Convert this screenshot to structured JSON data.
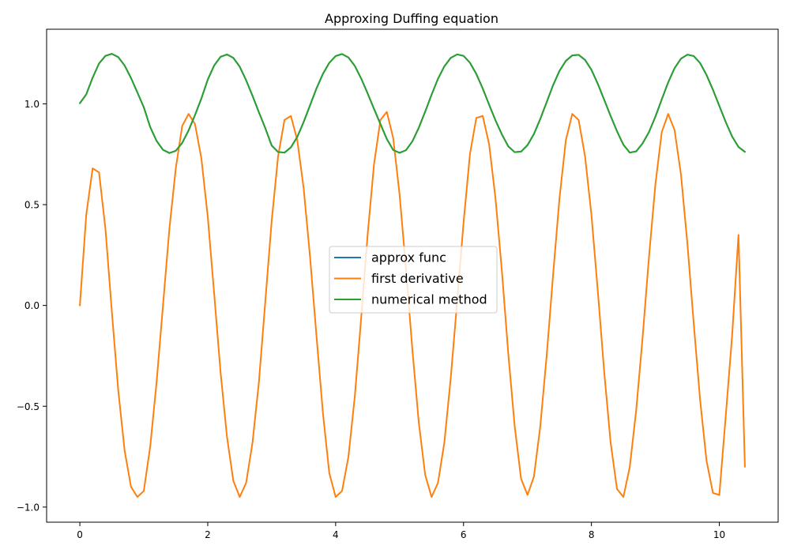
{
  "chart_data": {
    "type": "line",
    "title": "Approxing Duffing equation",
    "xlabel": "",
    "ylabel": "",
    "xlim": [
      -0.52,
      10.92
    ],
    "ylim": [
      -1.075,
      1.37
    ],
    "xticks": [
      0,
      2,
      4,
      6,
      8,
      10
    ],
    "xtick_labels": [
      "0",
      "2",
      "4",
      "6",
      "8",
      "10"
    ],
    "yticks": [
      -1.0,
      -0.5,
      0.0,
      0.5,
      1.0
    ],
    "ytick_labels": [
      "−1.0",
      "−0.5",
      "0.0",
      "0.5",
      "1.0"
    ],
    "grid": false,
    "legend_position": "center",
    "series": [
      {
        "name": "approx func",
        "color": "#1f77b4",
        "x": [
          0,
          0.1,
          0.2,
          0.3,
          0.4,
          0.5,
          0.6,
          0.7,
          0.8,
          0.9,
          1.0,
          1.1,
          1.2,
          1.3,
          1.4,
          1.5,
          1.6,
          1.7,
          1.8,
          1.9,
          2.0,
          2.1,
          2.2,
          2.3,
          2.4,
          2.5,
          2.6,
          2.7,
          2.8,
          2.9,
          3.0,
          3.1,
          3.2,
          3.3,
          3.4,
          3.5,
          3.6,
          3.7,
          3.8,
          3.9,
          4.0,
          4.1,
          4.2,
          4.3,
          4.4,
          4.5,
          4.6,
          4.7,
          4.8,
          4.9,
          5.0,
          5.1,
          5.2,
          5.3,
          5.4,
          5.5,
          5.6,
          5.7,
          5.8,
          5.9,
          6.0,
          6.1,
          6.2,
          6.3,
          6.4,
          6.5,
          6.6,
          6.7,
          6.8,
          6.9,
          7.0,
          7.1,
          7.2,
          7.3,
          7.4,
          7.5,
          7.6,
          7.7,
          7.8,
          7.9,
          8.0,
          8.1,
          8.2,
          8.3,
          8.4,
          8.5,
          8.6,
          8.7,
          8.8,
          8.9,
          9.0,
          9.1,
          9.2,
          9.3,
          9.4,
          9.5,
          9.6,
          9.7,
          9.8,
          9.9,
          10.0,
          10.1,
          10.2,
          10.3,
          10.4
        ],
        "y": [
          1.003,
          1.047,
          1.13,
          1.2,
          1.238,
          1.248,
          1.232,
          1.19,
          1.128,
          1.056,
          0.983,
          0.885,
          0.816,
          0.772,
          0.756,
          0.767,
          0.806,
          0.868,
          0.944,
          1.026,
          1.12,
          1.19,
          1.233,
          1.245,
          1.228,
          1.184,
          1.117,
          1.04,
          0.958,
          0.879,
          0.793,
          0.761,
          0.758,
          0.784,
          0.836,
          0.91,
          0.993,
          1.076,
          1.148,
          1.203,
          1.237,
          1.247,
          1.23,
          1.188,
          1.125,
          1.052,
          0.975,
          0.9,
          0.826,
          0.771,
          0.757,
          0.77,
          0.814,
          0.881,
          0.961,
          1.045,
          1.124,
          1.186,
          1.228,
          1.245,
          1.238,
          1.204,
          1.148,
          1.076,
          0.996,
          0.918,
          0.848,
          0.789,
          0.76,
          0.763,
          0.795,
          0.85,
          0.925,
          1.008,
          1.092,
          1.163,
          1.213,
          1.24,
          1.243,
          1.218,
          1.169,
          1.099,
          1.02,
          0.94,
          0.864,
          0.797,
          0.758,
          0.764,
          0.804,
          0.86,
          0.936,
          1.022,
          1.106,
          1.177,
          1.224,
          1.244,
          1.237,
          1.202,
          1.143,
          1.07,
          0.99,
          0.91,
          0.838,
          0.786,
          0.762
        ]
      },
      {
        "name": "first derivative",
        "color": "#ff7f0e",
        "x": [
          0,
          0.1,
          0.2,
          0.3,
          0.4,
          0.5,
          0.6,
          0.7,
          0.8,
          0.9,
          1.0,
          1.1,
          1.2,
          1.3,
          1.4,
          1.5,
          1.6,
          1.7,
          1.8,
          1.9,
          2.0,
          2.1,
          2.2,
          2.3,
          2.4,
          2.5,
          2.6,
          2.7,
          2.8,
          2.9,
          3.0,
          3.1,
          3.2,
          3.3,
          3.4,
          3.5,
          3.6,
          3.7,
          3.8,
          3.9,
          4.0,
          4.1,
          4.2,
          4.3,
          4.4,
          4.5,
          4.6,
          4.7,
          4.8,
          4.9,
          5.0,
          5.1,
          5.2,
          5.3,
          5.4,
          5.5,
          5.6,
          5.7,
          5.8,
          5.9,
          6.0,
          6.1,
          6.2,
          6.3,
          6.4,
          6.5,
          6.6,
          6.7,
          6.8,
          6.9,
          7.0,
          7.1,
          7.2,
          7.3,
          7.4,
          7.5,
          7.6,
          7.7,
          7.8,
          7.9,
          8.0,
          8.1,
          8.2,
          8.3,
          8.4,
          8.5,
          8.6,
          8.7,
          8.8,
          8.9,
          9.0,
          9.1,
          9.2,
          9.3,
          9.4,
          9.5,
          9.6,
          9.7,
          9.8,
          9.9,
          10.0,
          10.1,
          10.2,
          10.3,
          10.4
        ],
        "y": [
          0.0,
          0.45,
          0.68,
          0.66,
          0.38,
          -0.03,
          -0.42,
          -0.72,
          -0.9,
          -0.95,
          -0.92,
          -0.7,
          -0.38,
          0.0,
          0.38,
          0.68,
          0.89,
          0.95,
          0.9,
          0.73,
          0.44,
          0.06,
          -0.33,
          -0.65,
          -0.87,
          -0.95,
          -0.88,
          -0.68,
          -0.38,
          0.02,
          0.42,
          0.74,
          0.92,
          0.94,
          0.82,
          0.58,
          0.24,
          -0.15,
          -0.53,
          -0.83,
          -0.95,
          -0.92,
          -0.75,
          -0.45,
          -0.06,
          0.35,
          0.7,
          0.92,
          0.96,
          0.83,
          0.55,
          0.18,
          -0.22,
          -0.58,
          -0.84,
          -0.95,
          -0.88,
          -0.68,
          -0.36,
          0.02,
          0.41,
          0.75,
          0.93,
          0.94,
          0.8,
          0.53,
          0.17,
          -0.24,
          -0.6,
          -0.86,
          -0.94,
          -0.85,
          -0.6,
          -0.25,
          0.15,
          0.53,
          0.82,
          0.95,
          0.92,
          0.74,
          0.45,
          0.07,
          -0.33,
          -0.68,
          -0.91,
          -0.95,
          -0.8,
          -0.52,
          -0.16,
          0.24,
          0.6,
          0.86,
          0.95,
          0.87,
          0.65,
          0.31,
          -0.09,
          -0.47,
          -0.77,
          -0.93,
          -0.94,
          -0.55,
          -0.15,
          0.35,
          -0.8
        ]
      },
      {
        "name": "numerical method",
        "color": "#2ca02c",
        "x": [
          0,
          0.1,
          0.2,
          0.3,
          0.4,
          0.5,
          0.6,
          0.7,
          0.8,
          0.9,
          1.0,
          1.1,
          1.2,
          1.3,
          1.4,
          1.5,
          1.6,
          1.7,
          1.8,
          1.9,
          2.0,
          2.1,
          2.2,
          2.3,
          2.4,
          2.5,
          2.6,
          2.7,
          2.8,
          2.9,
          3.0,
          3.1,
          3.2,
          3.3,
          3.4,
          3.5,
          3.6,
          3.7,
          3.8,
          3.9,
          4.0,
          4.1,
          4.2,
          4.3,
          4.4,
          4.5,
          4.6,
          4.7,
          4.8,
          4.9,
          5.0,
          5.1,
          5.2,
          5.3,
          5.4,
          5.5,
          5.6,
          5.7,
          5.8,
          5.9,
          6.0,
          6.1,
          6.2,
          6.3,
          6.4,
          6.5,
          6.6,
          6.7,
          6.8,
          6.9,
          7.0,
          7.1,
          7.2,
          7.3,
          7.4,
          7.5,
          7.6,
          7.7,
          7.8,
          7.9,
          8.0,
          8.1,
          8.2,
          8.3,
          8.4,
          8.5,
          8.6,
          8.7,
          8.8,
          8.9,
          9.0,
          9.1,
          9.2,
          9.3,
          9.4,
          9.5,
          9.6,
          9.7,
          9.8,
          9.9,
          10.0,
          10.1,
          10.2,
          10.3,
          10.4
        ],
        "y": [
          1.003,
          1.047,
          1.13,
          1.2,
          1.238,
          1.248,
          1.232,
          1.19,
          1.128,
          1.056,
          0.983,
          0.885,
          0.816,
          0.772,
          0.756,
          0.767,
          0.806,
          0.868,
          0.944,
          1.026,
          1.12,
          1.19,
          1.233,
          1.245,
          1.228,
          1.184,
          1.117,
          1.04,
          0.958,
          0.879,
          0.793,
          0.761,
          0.758,
          0.784,
          0.836,
          0.91,
          0.993,
          1.076,
          1.148,
          1.203,
          1.237,
          1.247,
          1.23,
          1.188,
          1.125,
          1.052,
          0.975,
          0.9,
          0.826,
          0.771,
          0.757,
          0.77,
          0.814,
          0.881,
          0.961,
          1.045,
          1.124,
          1.186,
          1.228,
          1.245,
          1.238,
          1.204,
          1.148,
          1.076,
          0.996,
          0.918,
          0.848,
          0.789,
          0.76,
          0.763,
          0.795,
          0.85,
          0.925,
          1.008,
          1.092,
          1.163,
          1.213,
          1.24,
          1.243,
          1.218,
          1.169,
          1.099,
          1.02,
          0.94,
          0.864,
          0.797,
          0.758,
          0.764,
          0.804,
          0.86,
          0.936,
          1.022,
          1.106,
          1.177,
          1.224,
          1.244,
          1.237,
          1.202,
          1.143,
          1.07,
          0.99,
          0.91,
          0.838,
          0.786,
          0.762
        ]
      }
    ]
  }
}
